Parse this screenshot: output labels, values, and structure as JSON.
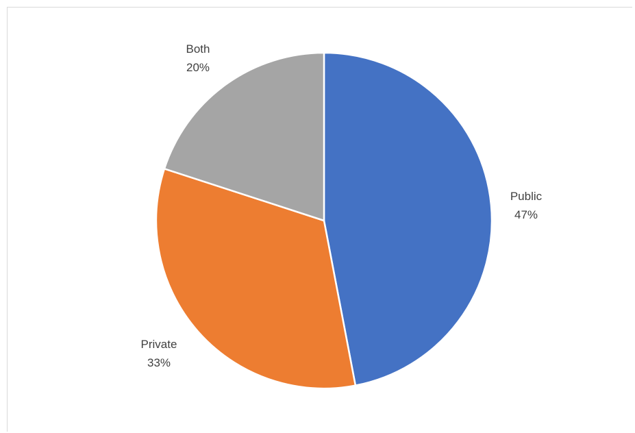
{
  "chart_data": {
    "type": "pie",
    "title": "",
    "categories": [
      "Public",
      "Private",
      "Both"
    ],
    "values": [
      47,
      33,
      20
    ],
    "labels": [
      {
        "name": "Public",
        "percent": "47%"
      },
      {
        "name": "Private",
        "percent": "33%"
      },
      {
        "name": "Both",
        "percent": "20%"
      }
    ],
    "colors": [
      "#4472c4",
      "#ed7d31",
      "#a5a5a5"
    ],
    "start_angle": "12 o'clock",
    "direction": "clockwise",
    "legend": "none",
    "data_labels": "outside, category name and percentage"
  }
}
